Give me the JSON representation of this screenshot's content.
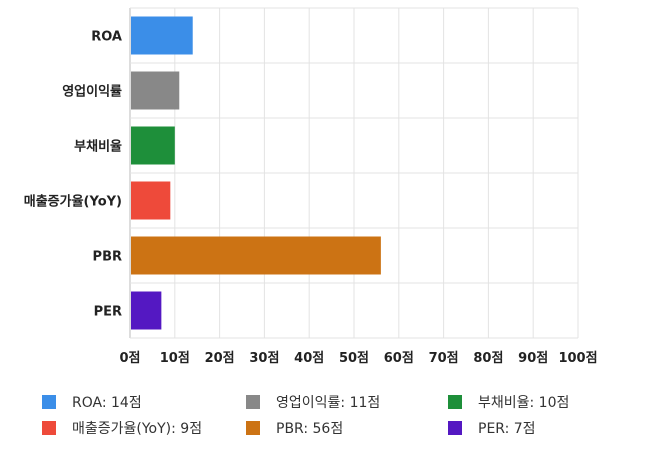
{
  "chart_data": {
    "type": "bar",
    "orientation": "horizontal",
    "categories": [
      "ROA",
      "영업이익률",
      "부채비율",
      "매출증가율(YoY)",
      "PBR",
      "PER"
    ],
    "values": [
      14,
      11,
      10,
      9,
      56,
      7
    ],
    "colors": [
      "#3b8ee8",
      "#888888",
      "#1e8f3a",
      "#ee4a3a",
      "#cc7314",
      "#5418c2"
    ],
    "x_ticks": [
      "0점",
      "10점",
      "20점",
      "30점",
      "40점",
      "50점",
      "60점",
      "70점",
      "80점",
      "90점",
      "100점"
    ],
    "xlim": [
      0,
      100
    ],
    "grid": true,
    "legend_position": "bottom",
    "legend": [
      {
        "label": "ROA: 14점",
        "color": "#3b8ee8"
      },
      {
        "label": "영업이익률: 11점",
        "color": "#888888"
      },
      {
        "label": "부채비율: 10점",
        "color": "#1e8f3a"
      },
      {
        "label": "매출증가율(YoY): 9점",
        "color": "#ee4a3a"
      },
      {
        "label": "PBR: 56점",
        "color": "#cc7314"
      },
      {
        "label": "PER: 7점",
        "color": "#5418c2"
      }
    ]
  }
}
